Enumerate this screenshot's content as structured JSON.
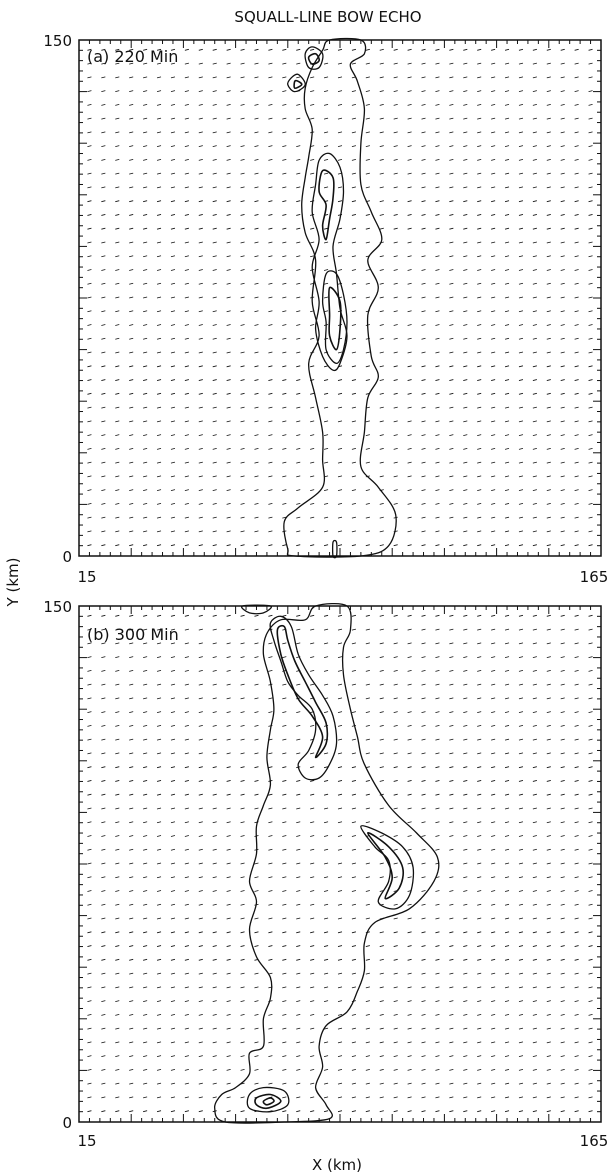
{
  "figure": {
    "title": "SQUALL-LINE BOW ECHO",
    "xlabel": "X (km)",
    "ylabel": "Y (km)"
  },
  "chart_data": [
    {
      "type": "contour",
      "panel_label": "(a) 220 Min",
      "xlim": [
        15,
        165
      ],
      "ylim": [
        0,
        150
      ],
      "x_tick_labels": [
        "15",
        "165"
      ],
      "y_tick_labels": [
        "0",
        "150"
      ],
      "grid": "wind vectors on regular grid",
      "contour_color": "#111111",
      "contours": [
        {
          "level": 1,
          "points": [
            [
              85,
              147
            ],
            [
              87,
              150
            ],
            [
              96,
              150
            ],
            [
              97,
              146
            ],
            [
              93,
              143
            ],
            [
              95,
              138
            ],
            [
              97,
              130
            ],
            [
              96,
              120
            ],
            [
              96,
              108
            ],
            [
              99,
              100
            ],
            [
              102,
              92
            ],
            [
              98,
              86
            ],
            [
              101,
              78
            ],
            [
              98,
              70
            ],
            [
              99,
              58
            ],
            [
              101,
              52
            ],
            [
              98,
              46
            ],
            [
              97,
              36
            ],
            [
              96,
              26
            ],
            [
              101,
              20
            ],
            [
              106,
              12
            ],
            [
              104,
              3
            ],
            [
              96,
              0
            ],
            [
              77,
              0
            ],
            [
              75,
              2
            ],
            [
              74,
              10
            ],
            [
              78,
              14
            ],
            [
              85,
              20
            ],
            [
              85,
              28
            ],
            [
              85,
              36
            ],
            [
              83,
              46
            ],
            [
              81,
              56
            ],
            [
              84,
              64
            ],
            [
              82,
              74
            ],
            [
              83,
              86
            ],
            [
              80,
              94
            ],
            [
              79,
              102
            ],
            [
              80,
              110
            ],
            [
              81,
              116
            ],
            [
              82,
              124
            ],
            [
              80,
              130
            ],
            [
              80,
              136
            ],
            [
              82,
              142
            ]
          ]
        },
        {
          "level": 2,
          "points": [
            [
              84,
              115
            ],
            [
              87,
              117
            ],
            [
              90,
              113
            ],
            [
              91,
              106
            ],
            [
              90,
              98
            ],
            [
              88,
              90
            ],
            [
              89,
              82
            ],
            [
              90,
              72
            ],
            [
              92,
              64
            ],
            [
              90,
              56
            ],
            [
              88,
              54
            ],
            [
              85,
              58
            ],
            [
              83,
              66
            ],
            [
              84,
              74
            ],
            [
              82,
              84
            ],
            [
              84,
              92
            ],
            [
              82,
              100
            ],
            [
              83,
              108
            ]
          ]
        },
        {
          "level": 3,
          "points": [
            [
              85,
              112
            ],
            [
              88,
              110
            ],
            [
              88,
              104
            ],
            [
              87,
              98
            ],
            [
              86,
              92
            ],
            [
              85,
              96
            ],
            [
              86,
              102
            ],
            [
              84,
              106
            ]
          ]
        },
        {
          "level": 2,
          "points": [
            [
              86,
              82
            ],
            [
              89,
              82
            ],
            [
              91,
              76
            ],
            [
              92,
              68
            ],
            [
              91,
              60
            ],
            [
              89,
              56
            ],
            [
              86,
              60
            ],
            [
              86,
              68
            ],
            [
              85,
              74
            ]
          ]
        },
        {
          "level": 3,
          "points": [
            [
              87,
              78
            ],
            [
              90,
              74
            ],
            [
              90,
              66
            ],
            [
              89,
              60
            ],
            [
              87,
              64
            ],
            [
              87,
              70
            ]
          ]
        },
        {
          "level": 2,
          "points": [
            [
              80,
              146
            ],
            [
              82,
              148
            ],
            [
              85,
              146
            ],
            [
              84,
              142
            ],
            [
              81,
              142
            ]
          ]
        },
        {
          "level": 3,
          "points": [
            [
              81,
              145
            ],
            [
              83,
              146
            ],
            [
              84,
              144
            ],
            [
              82,
              143
            ]
          ]
        },
        {
          "level": 2,
          "points": [
            [
              76,
              139
            ],
            [
              78,
              140
            ],
            [
              80,
              137
            ],
            [
              77,
              135
            ],
            [
              75,
              137
            ]
          ]
        },
        {
          "level": 3,
          "points": [
            [
              77,
              138
            ],
            [
              78,
              138
            ],
            [
              79,
              137
            ],
            [
              77,
              136
            ]
          ]
        },
        {
          "level": 1,
          "points": [
            [
              88,
              0
            ],
            [
              88,
              4
            ],
            [
              89,
              4
            ],
            [
              89,
              0
            ]
          ]
        }
      ]
    },
    {
      "type": "contour",
      "panel_label": "(b) 300 Min",
      "xlim": [
        15,
        165
      ],
      "ylim": [
        0,
        150
      ],
      "x_tick_labels": [
        "15",
        "165"
      ],
      "y_tick_labels": [
        "0",
        "150"
      ],
      "grid": "wind vectors on regular grid",
      "contour_color": "#111111",
      "contours": [
        {
          "level": 1,
          "points": [
            [
              80,
              146
            ],
            [
              83,
              150
            ],
            [
              92,
              150
            ],
            [
              93,
              143
            ],
            [
              91,
              138
            ],
            [
              91,
              130
            ],
            [
              93,
              120
            ],
            [
              95,
              112
            ],
            [
              97,
              104
            ],
            [
              104,
              92
            ],
            [
              112,
              84
            ],
            [
              118,
              77
            ],
            [
              117,
              70
            ],
            [
              110,
              62
            ],
            [
              100,
              58
            ],
            [
              97,
              52
            ],
            [
              97,
              44
            ],
            [
              95,
              38
            ],
            [
              92,
              32
            ],
            [
              86,
              28
            ],
            [
              84,
              22
            ],
            [
              85,
              16
            ],
            [
              83,
              10
            ],
            [
              86,
              5
            ],
            [
              87,
              1
            ],
            [
              74,
              0
            ],
            [
              57,
              0
            ],
            [
              54,
              4
            ],
            [
              56,
              8
            ],
            [
              60,
              10
            ],
            [
              64,
              14
            ],
            [
              64,
              20
            ],
            [
              68,
              22
            ],
            [
              68,
              30
            ],
            [
              70,
              36
            ],
            [
              70,
              42
            ],
            [
              66,
              48
            ],
            [
              64,
              56
            ],
            [
              66,
              64
            ],
            [
              64,
              70
            ],
            [
              66,
              78
            ],
            [
              66,
              86
            ],
            [
              68,
              92
            ],
            [
              70,
              98
            ],
            [
              69,
              106
            ],
            [
              70,
              114
            ],
            [
              71,
              120
            ],
            [
              70,
              128
            ],
            [
              68,
              136
            ],
            [
              69,
              142
            ],
            [
              73,
              146
            ]
          ]
        },
        {
          "level": 1,
          "points": [
            [
              62,
              150
            ],
            [
              70,
              150
            ],
            [
              68,
              148
            ],
            [
              64,
              148
            ]
          ]
        },
        {
          "level": 2,
          "points": [
            [
              70,
              145
            ],
            [
              73,
              147
            ],
            [
              76,
              144
            ],
            [
              78,
              136
            ],
            [
              81,
              130
            ],
            [
              85,
              124
            ],
            [
              88,
              118
            ],
            [
              89,
              110
            ],
            [
              87,
              104
            ],
            [
              84,
              100
            ],
            [
              80,
              100
            ],
            [
              78,
              104
            ],
            [
              81,
              108
            ],
            [
              83,
              114
            ],
            [
              82,
              120
            ],
            [
              78,
              124
            ],
            [
              75,
              128
            ],
            [
              73,
              134
            ],
            [
              71,
              140
            ]
          ]
        },
        {
          "level": 3,
          "points": [
            [
              72,
              143
            ],
            [
              74,
              144
            ],
            [
              75,
              140
            ],
            [
              77,
              134
            ],
            [
              80,
              128
            ],
            [
              83,
              122
            ],
            [
              86,
              116
            ],
            [
              86,
              110
            ],
            [
              83,
              106
            ],
            [
              85,
              112
            ],
            [
              82,
              118
            ],
            [
              78,
              123
            ],
            [
              75,
              130
            ],
            [
              73,
              136
            ]
          ]
        },
        {
          "level": 2,
          "points": [
            [
              96,
              86
            ],
            [
              102,
              84
            ],
            [
              108,
              80
            ],
            [
              111,
              74
            ],
            [
              110,
              66
            ],
            [
              106,
              62
            ],
            [
              101,
              64
            ],
            [
              104,
              70
            ],
            [
              104,
              76
            ],
            [
              100,
              80
            ]
          ]
        },
        {
          "level": 3,
          "points": [
            [
              98,
              84
            ],
            [
              104,
              80
            ],
            [
              108,
              74
            ],
            [
              107,
              68
            ],
            [
              103,
              65
            ],
            [
              105,
              71
            ],
            [
              103,
              77
            ]
          ]
        },
        {
          "level": 2,
          "points": [
            [
              64,
              8
            ],
            [
              68,
              10
            ],
            [
              74,
              9
            ],
            [
              75,
              5
            ],
            [
              70,
              3
            ],
            [
              64,
              4
            ]
          ]
        },
        {
          "level": 3,
          "points": [
            [
              66,
              7
            ],
            [
              70,
              8
            ],
            [
              73,
              6
            ],
            [
              69,
              4
            ],
            [
              66,
              5
            ]
          ]
        },
        {
          "level": 4,
          "points": [
            [
              68,
              6
            ],
            [
              70,
              7
            ],
            [
              71,
              6
            ],
            [
              69,
              5
            ]
          ]
        }
      ]
    }
  ]
}
